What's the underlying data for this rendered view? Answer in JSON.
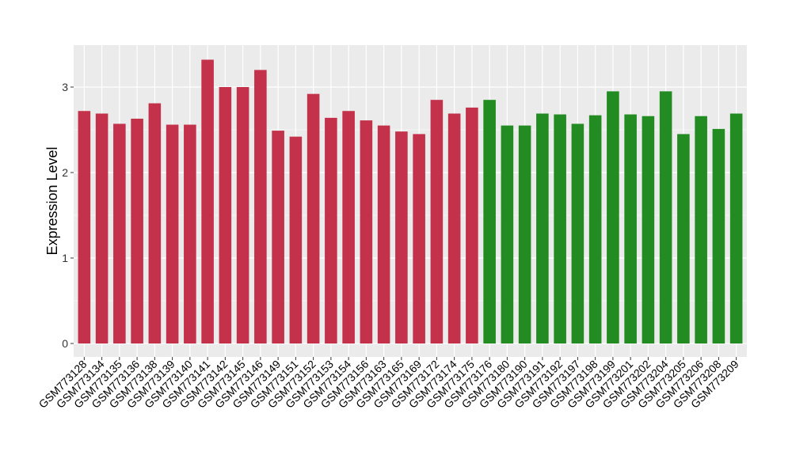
{
  "chart_data": {
    "type": "bar",
    "title": "",
    "xlabel": "",
    "ylabel": "Expression Level",
    "ylim": [
      -0.15,
      3.5
    ],
    "yticks": [
      0,
      1,
      2,
      3
    ],
    "grid": true,
    "legend": "none",
    "categories": [
      "GSM773128",
      "GSM773134",
      "GSM773135",
      "GSM773136",
      "GSM773138",
      "GSM773139",
      "GSM773140",
      "GSM773141",
      "GSM773142",
      "GSM773145",
      "GSM773146",
      "GSM773149",
      "GSM773151",
      "GSM773152",
      "GSM773153",
      "GSM773154",
      "GSM773156",
      "GSM773163",
      "GSM773165",
      "GSM773169",
      "GSM773172",
      "GSM773174",
      "GSM773175",
      "GSM773176",
      "GSM773180",
      "GSM773190",
      "GSM773191",
      "GSM773192",
      "GSM773197",
      "GSM773198",
      "GSM773199",
      "GSM773201",
      "GSM773202",
      "GSM773204",
      "GSM773205",
      "GSM773206",
      "GSM773208",
      "GSM773209"
    ],
    "values": [
      2.72,
      2.69,
      2.57,
      2.63,
      2.81,
      2.56,
      2.56,
      3.32,
      3.0,
      3.0,
      3.2,
      2.49,
      2.42,
      2.92,
      2.64,
      2.72,
      2.61,
      2.55,
      2.48,
      2.45,
      2.85,
      2.69,
      2.76,
      2.85,
      2.55,
      2.55,
      2.69,
      2.68,
      2.57,
      2.67,
      2.95,
      2.68,
      2.66,
      2.95,
      2.45,
      2.66,
      2.51,
      2.69
    ],
    "groups": [
      "red",
      "red",
      "red",
      "red",
      "red",
      "red",
      "red",
      "red",
      "red",
      "red",
      "red",
      "red",
      "red",
      "red",
      "red",
      "red",
      "red",
      "red",
      "red",
      "red",
      "red",
      "red",
      "red",
      "green",
      "green",
      "green",
      "green",
      "green",
      "green",
      "green",
      "green",
      "green",
      "green",
      "green",
      "green",
      "green",
      "green",
      "green"
    ],
    "colors": {
      "red": "#C3314A",
      "green": "#228B22",
      "panel": "#EBEBEB",
      "grid": "#FFFFFF"
    }
  }
}
